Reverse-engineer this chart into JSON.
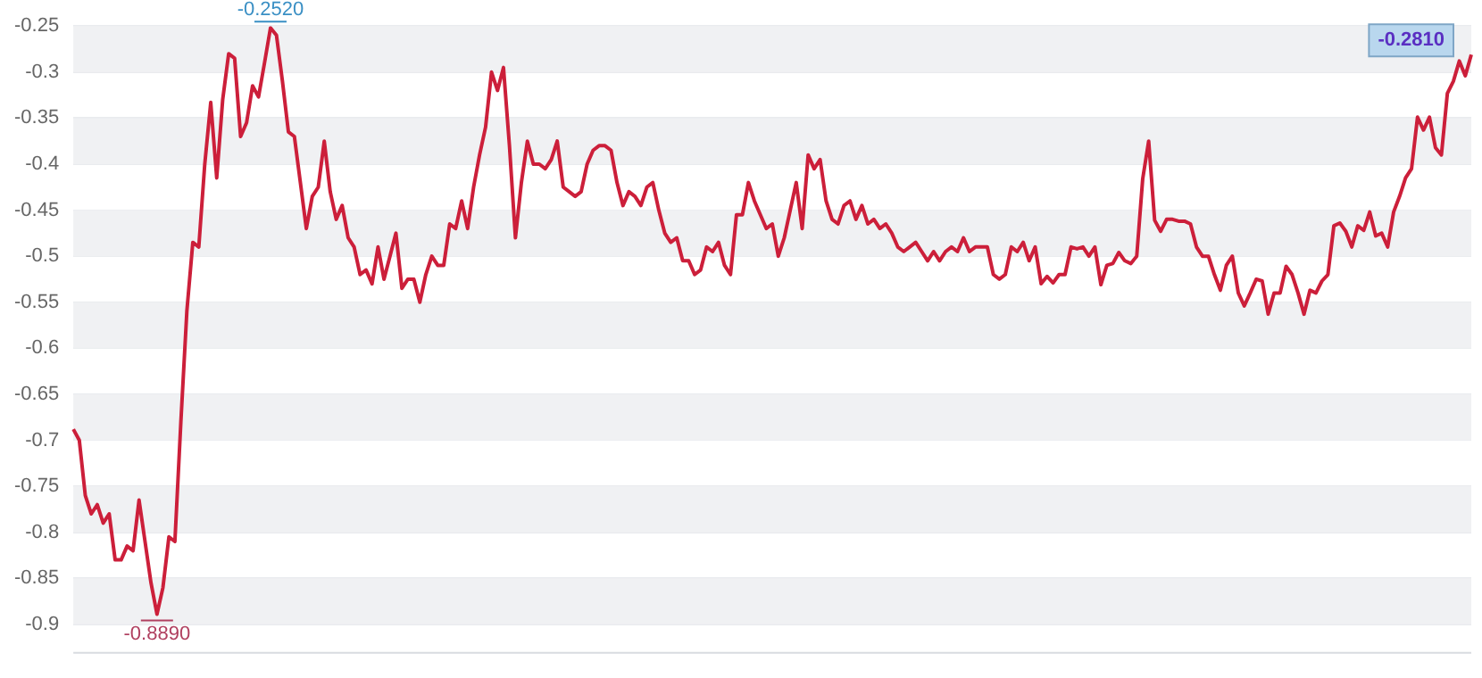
{
  "chart_data": {
    "type": "line",
    "categories": [
      null,
      null,
      null,
      null,
      null,
      null,
      null,
      null,
      null,
      null,
      null,
      null,
      null,
      null,
      null,
      null,
      null,
      null,
      null,
      null,
      null,
      null,
      null,
      null,
      null,
      null,
      null,
      null,
      null,
      null,
      null,
      null,
      null,
      null,
      null,
      null,
      null,
      null,
      null,
      null,
      null,
      null,
      null,
      null,
      null,
      null,
      null,
      null,
      null,
      null,
      null,
      null,
      null,
      null,
      null,
      null,
      null,
      null,
      null,
      null,
      null,
      null,
      null,
      null,
      null,
      null,
      null,
      null,
      null,
      null,
      null,
      null,
      null,
      null,
      null,
      null,
      null,
      null,
      null,
      null,
      null,
      null,
      null,
      null,
      null,
      null,
      null,
      null,
      null,
      null,
      null,
      null,
      null,
      null,
      null,
      null,
      null,
      null,
      null,
      null,
      null,
      null,
      null,
      null,
      null,
      null,
      null,
      null,
      null,
      null,
      null,
      null,
      null,
      null,
      null,
      null,
      null,
      null,
      null,
      null,
      null,
      null,
      null,
      null,
      null,
      null,
      null,
      null,
      null,
      null,
      null,
      null,
      null,
      null,
      null,
      null,
      null,
      null,
      null,
      null,
      null,
      null,
      null,
      null,
      null,
      null,
      null,
      null,
      null,
      null,
      null,
      null,
      null,
      null,
      null,
      null,
      null,
      null,
      null,
      null,
      null,
      null,
      null,
      null,
      null,
      null,
      null,
      null,
      null,
      null,
      null,
      null,
      null,
      null,
      null,
      null,
      null,
      null,
      null,
      null,
      null,
      null,
      null,
      null,
      null,
      null,
      null,
      null,
      null,
      null,
      null,
      null,
      null,
      null,
      null,
      null,
      null,
      null,
      null,
      null,
      null,
      null,
      null,
      null,
      null,
      null,
      null,
      null,
      null,
      null,
      null,
      null,
      null,
      null,
      null,
      null,
      null,
      null,
      null,
      null,
      null,
      null,
      null,
      null,
      null,
      null,
      null,
      null,
      null,
      null,
      null,
      null,
      null,
      null,
      null
    ],
    "series": [
      {
        "color": "#cc1f3a",
        "values": [
          -0.688,
          -0.7,
          -0.76,
          -0.78,
          -0.77,
          -0.79,
          -0.78,
          -0.83,
          -0.83,
          -0.815,
          -0.82,
          -0.765,
          -0.81,
          -0.855,
          -0.889,
          -0.86,
          -0.805,
          -0.81,
          -0.68,
          -0.56,
          -0.485,
          -0.49,
          -0.4,
          -0.333,
          -0.415,
          -0.33,
          -0.28,
          -0.285,
          -0.37,
          -0.355,
          -0.315,
          -0.327,
          -0.29,
          -0.252,
          -0.26,
          -0.31,
          -0.365,
          -0.37,
          -0.42,
          -0.47,
          -0.435,
          -0.425,
          -0.375,
          -0.43,
          -0.46,
          -0.445,
          -0.48,
          -0.49,
          -0.52,
          -0.515,
          -0.53,
          -0.49,
          -0.525,
          -0.5,
          -0.475,
          -0.535,
          -0.525,
          -0.525,
          -0.55,
          -0.52,
          -0.5,
          -0.51,
          -0.51,
          -0.465,
          -0.47,
          -0.44,
          -0.47,
          -0.425,
          -0.39,
          -0.36,
          -0.3,
          -0.32,
          -0.295,
          -0.38,
          -0.48,
          -0.42,
          -0.375,
          -0.4,
          -0.4,
          -0.405,
          -0.395,
          -0.375,
          -0.425,
          -0.43,
          -0.435,
          -0.43,
          -0.4,
          -0.385,
          -0.38,
          -0.38,
          -0.385,
          -0.42,
          -0.445,
          -0.43,
          -0.435,
          -0.445,
          -0.425,
          -0.42,
          -0.45,
          -0.475,
          -0.485,
          -0.48,
          -0.505,
          -0.505,
          -0.52,
          -0.515,
          -0.49,
          -0.495,
          -0.485,
          -0.51,
          -0.52,
          -0.455,
          -0.455,
          -0.42,
          -0.44,
          -0.455,
          -0.47,
          -0.465,
          -0.5,
          -0.48,
          -0.45,
          -0.42,
          -0.47,
          -0.39,
          -0.405,
          -0.395,
          -0.44,
          -0.46,
          -0.465,
          -0.445,
          -0.44,
          -0.46,
          -0.445,
          -0.465,
          -0.46,
          -0.47,
          -0.465,
          -0.475,
          -0.49,
          -0.495,
          -0.49,
          -0.485,
          -0.495,
          -0.505,
          -0.495,
          -0.505,
          -0.495,
          -0.49,
          -0.495,
          -0.48,
          -0.495,
          -0.49,
          -0.49,
          -0.49,
          -0.52,
          -0.525,
          -0.52,
          -0.49,
          -0.495,
          -0.485,
          -0.505,
          -0.49,
          -0.53,
          -0.522,
          -0.529,
          -0.52,
          -0.52,
          -0.49,
          -0.492,
          -0.49,
          -0.5,
          -0.49,
          -0.531,
          -0.51,
          -0.508,
          -0.496,
          -0.505,
          -0.508,
          -0.5,
          -0.416,
          -0.375,
          -0.461,
          -0.473,
          -0.46,
          -0.46,
          -0.462,
          -0.462,
          -0.465,
          -0.49,
          -0.5,
          -0.5,
          -0.52,
          -0.537,
          -0.51,
          -0.5,
          -0.54,
          -0.554,
          -0.54,
          -0.525,
          -0.527,
          -0.563,
          -0.54,
          -0.54,
          -0.511,
          -0.52,
          -0.54,
          -0.563,
          -0.537,
          -0.54,
          -0.527,
          -0.52,
          -0.467,
          -0.464,
          -0.473,
          -0.49,
          -0.467,
          -0.472,
          -0.452,
          -0.478,
          -0.475,
          -0.49,
          -0.452,
          -0.435,
          -0.415,
          -0.405,
          -0.349,
          -0.363,
          -0.349,
          -0.382,
          -0.39,
          -0.323,
          -0.31,
          -0.288,
          -0.304,
          -0.281
        ]
      }
    ],
    "ylim": [
      -0.93,
      -0.25
    ],
    "yticks": [
      -0.9,
      -0.85,
      -0.8,
      -0.75,
      -0.7,
      -0.65,
      -0.6,
      -0.55,
      -0.5,
      -0.45,
      -0.4,
      -0.35,
      -0.3,
      -0.25
    ],
    "grid": true,
    "tick_labels": "y",
    "marker": "none",
    "line_style": "solid",
    "legend": false,
    "annotations": [
      {
        "text": "-0.2520",
        "y": -0.252
      },
      {
        "text": "-0.8890",
        "y": -0.889
      },
      "-0.2810"
    ]
  }
}
